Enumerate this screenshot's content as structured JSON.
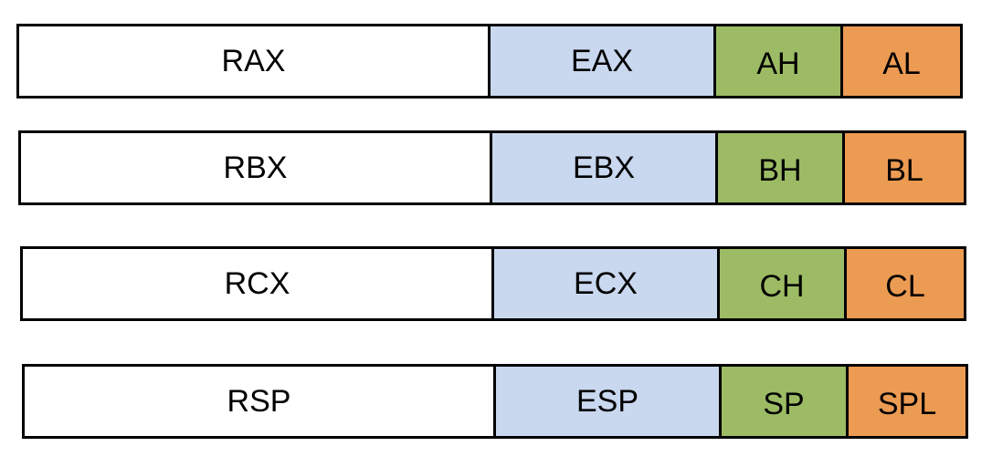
{
  "colors": {
    "full_register": "#ffffff",
    "extended_32bit": "#c9d8ef",
    "high_byte": "#9cbb64",
    "low_byte": "#ec9b53",
    "border": "#000000"
  },
  "registers": [
    {
      "full": "RAX",
      "extended": "EAX",
      "high": "AH",
      "low": "AL"
    },
    {
      "full": "RBX",
      "extended": "EBX",
      "high": "BH",
      "low": "BL"
    },
    {
      "full": "RCX",
      "extended": "ECX",
      "high": "CH",
      "low": "CL"
    },
    {
      "full": "RSP",
      "extended": "ESP",
      "high": "SP",
      "low": "SPL"
    }
  ]
}
